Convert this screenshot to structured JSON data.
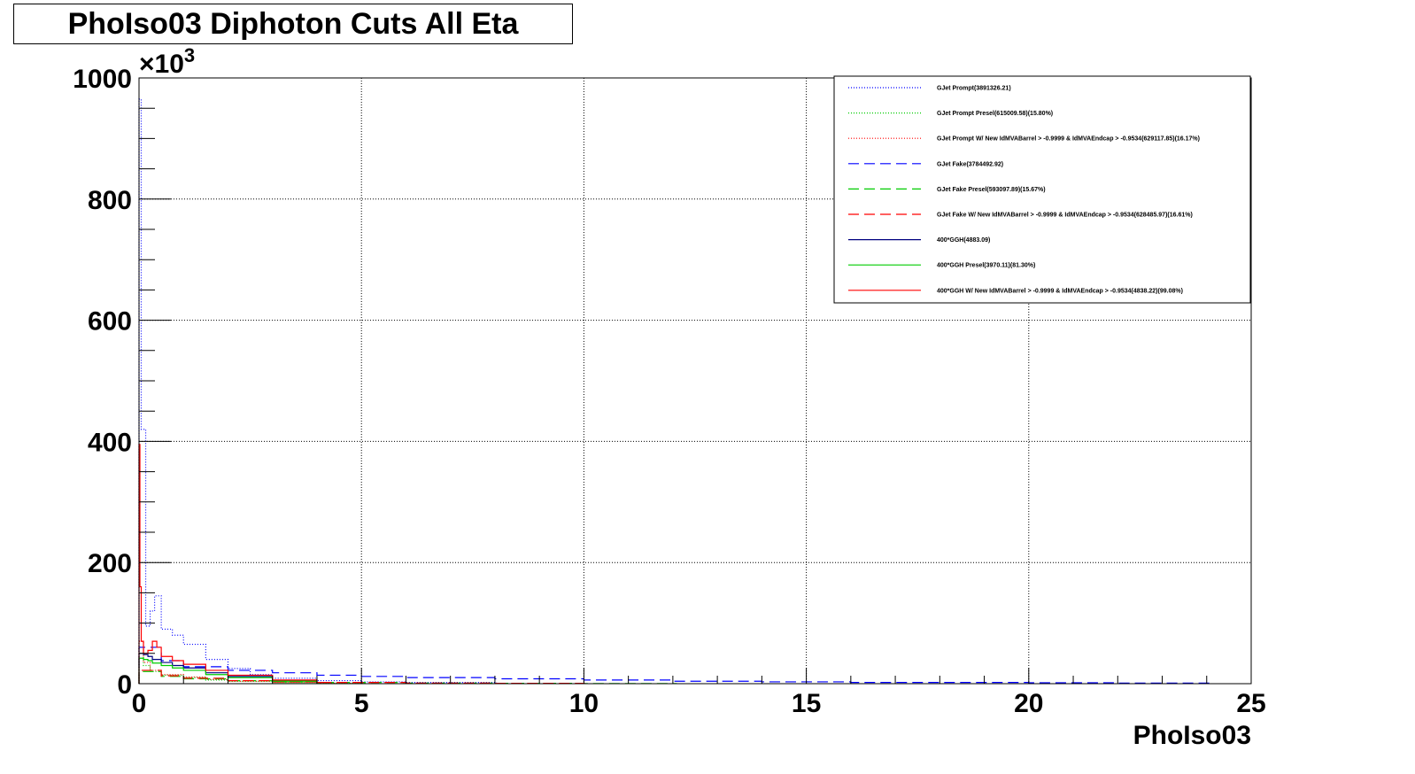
{
  "title": "PhoIso03 Diphoton Cuts All Eta",
  "chart_data": {
    "type": "line",
    "title": "PhoIso03 Diphoton Cuts All Eta",
    "xlabel": "PhoIso03",
    "ylabel": "",
    "y_multiplier": "×10",
    "y_multiplier_exp": "3",
    "xlim": [
      0,
      25
    ],
    "ylim": [
      0,
      1000
    ],
    "x_ticks": [
      "0",
      "5",
      "10",
      "15",
      "20",
      "25"
    ],
    "y_ticks": [
      "0",
      "200",
      "400",
      "600",
      "800",
      "1000"
    ],
    "grid": true,
    "legend_position": "top-right",
    "series": [
      {
        "name": "GJet Prompt(3891326.21)",
        "color": "#0000ff",
        "style": "dotted",
        "x": [
          0.0,
          0.05,
          0.15,
          0.25,
          0.35,
          0.5,
          0.75,
          1.0,
          1.5,
          2.0,
          2.5,
          3.0,
          4.0,
          5.0,
          6.0,
          8.0
        ],
        "y": [
          965,
          420,
          95,
          120,
          145,
          90,
          80,
          65,
          40,
          25,
          15,
          9,
          5,
          3,
          2,
          1
        ]
      },
      {
        "name": "GJet Prompt Presel(615009.58)(15.80%)",
        "color": "#00cc00",
        "style": "dotted",
        "x": [
          0.0,
          0.1,
          0.25,
          0.5,
          1.0,
          1.5,
          2.0,
          3.0,
          4.0,
          5.0
        ],
        "y": [
          60,
          30,
          20,
          14,
          10,
          6,
          4,
          2,
          1,
          0.5
        ]
      },
      {
        "name": "GJet Prompt W/ New IdMVABarrel > -0.9999 & IdMVAEndcap > -0.9534(629117.85)(16.17%)",
        "color": "#ff0000",
        "style": "dotted",
        "x": [
          0.0,
          0.1,
          0.25,
          0.5,
          1.0,
          1.5,
          2.0,
          3.0,
          4.0,
          5.0
        ],
        "y": [
          70,
          35,
          22,
          15,
          11,
          7,
          4,
          2,
          1,
          0.5
        ]
      },
      {
        "name": "GJet Fake(3784492.92)",
        "color": "#0000ff",
        "style": "dashed",
        "x": [
          0.0,
          0.5,
          1.0,
          2.0,
          3.0,
          4.0,
          5.0,
          6.0,
          8.0,
          10.0,
          12.0,
          14.0,
          16.0,
          18.0,
          20.0,
          22.0,
          24.0
        ],
        "y": [
          60,
          38,
          28,
          22,
          18,
          14,
          12,
          10,
          8,
          6,
          4,
          3,
          2,
          2,
          1.5,
          1,
          1
        ]
      },
      {
        "name": "GJet Fake Presel(593097.89)(15.67%)",
        "color": "#00cc00",
        "style": "dashed",
        "x": [
          0.0,
          0.5,
          1.0,
          2.0,
          3.0,
          4.0,
          6.0,
          8.0,
          10.0,
          12.0
        ],
        "y": [
          20,
          12,
          8,
          5,
          3,
          2,
          1,
          0.5,
          0.3,
          0.2
        ]
      },
      {
        "name": "GJet Fake W/ New IdMVABarrel > -0.9999 & IdMVAEndcap > -0.9534(628485.97)(16.61%)",
        "color": "#ff0000",
        "style": "dashed",
        "x": [
          0.0,
          0.5,
          1.0,
          2.0,
          3.0,
          4.0,
          6.0,
          8.0,
          10.0
        ],
        "y": [
          22,
          13,
          9,
          5,
          3,
          2,
          1,
          0.5,
          0.3
        ]
      },
      {
        "name": "400*GGH(4883.09)",
        "color": "#000080",
        "style": "solid",
        "x": [
          0.0,
          0.1,
          0.2,
          0.3,
          0.5,
          0.75,
          1.0,
          1.5,
          2.0,
          3.0,
          4.0
        ],
        "y": [
          50,
          48,
          45,
          40,
          35,
          30,
          26,
          18,
          12,
          5,
          2
        ]
      },
      {
        "name": "400*GGH Presel(3970.11)(81.30%)",
        "color": "#00cc00",
        "style": "solid",
        "x": [
          0.0,
          0.1,
          0.2,
          0.3,
          0.5,
          0.75,
          1.0,
          1.5,
          2.0,
          3.0,
          4.0
        ],
        "y": [
          42,
          40,
          38,
          34,
          30,
          26,
          22,
          15,
          10,
          4,
          1.5
        ]
      },
      {
        "name": "400*GGH W/ New IdMVABarrel > -0.9999 & IdMVAEndcap > -0.9534(4838.22)(99.08%)",
        "color": "#ff0000",
        "style": "solid",
        "x": [
          0.0,
          0.02,
          0.05,
          0.1,
          0.2,
          0.3,
          0.4,
          0.5,
          0.75,
          1.0,
          1.5,
          2.0,
          3.0,
          4.0
        ],
        "y": [
          395,
          160,
          70,
          50,
          55,
          70,
          60,
          45,
          38,
          32,
          22,
          14,
          6,
          2
        ]
      }
    ]
  }
}
